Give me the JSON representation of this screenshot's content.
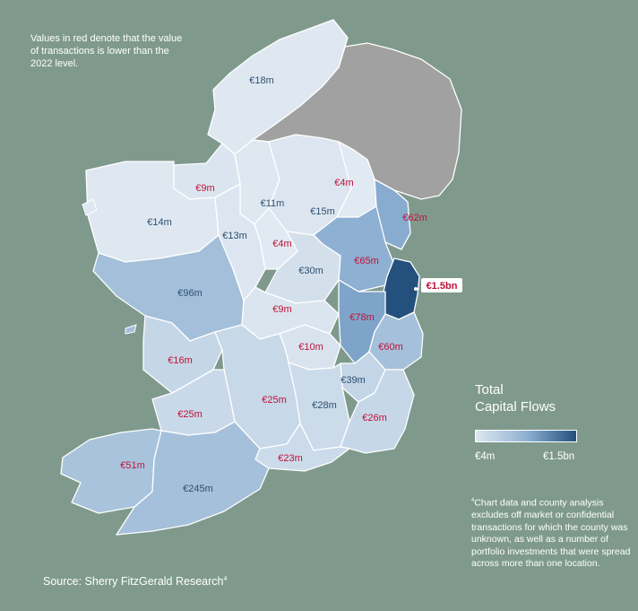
{
  "note": "Values in red denote that the value of transactions is lower than the 2022 level.",
  "source": "Source: Sherry FitzGerald Research",
  "source_sup": "4",
  "legend": {
    "title_line1": "Total",
    "title_line2": "Capital Flows",
    "min_label": "€4m",
    "max_label": "€1.5bn"
  },
  "footnote_sup": "4",
  "footnote": "Chart data and county analysis excludes off market or confidential transactions for which the county was unknown, as well as a number of portfolio investments that were spread across more than one location.",
  "colors": {
    "background": "#7f9a8d",
    "northern_ireland": "#a1a1a1",
    "lowest": "#dde7f1",
    "highest": "#24507d",
    "below_2022": "#c0113a",
    "above_2022": "#2c4f73"
  },
  "counties": {
    "donegal": {
      "value": "€18m",
      "below_2022": false
    },
    "sligo": {
      "value": "€9m",
      "below_2022": true
    },
    "leitrim": {
      "value": "€11m",
      "below_2022": false
    },
    "cavan": {
      "value": "€15m",
      "below_2022": false
    },
    "monaghan": {
      "value": "€4m",
      "below_2022": true
    },
    "louth": {
      "value": "€62m",
      "below_2022": true
    },
    "mayo": {
      "value": "€14m",
      "below_2022": false
    },
    "roscommon": {
      "value": "€13m",
      "below_2022": false
    },
    "longford": {
      "value": "€4m",
      "below_2022": true
    },
    "meath": {
      "value": "€65m",
      "below_2022": true
    },
    "westmeath": {
      "value": "€30m",
      "below_2022": false
    },
    "dublin": {
      "value": "€1.5bn",
      "below_2022": true
    },
    "galway": {
      "value": "€96m",
      "below_2022": false
    },
    "offaly": {
      "value": "€9m",
      "below_2022": true
    },
    "kildare": {
      "value": "€78m",
      "below_2022": true
    },
    "laois": {
      "value": "€10m",
      "below_2022": true
    },
    "wicklow": {
      "value": "€60m",
      "below_2022": true
    },
    "clare": {
      "value": "€16m",
      "below_2022": true
    },
    "carlow": {
      "value": "€39m",
      "below_2022": false
    },
    "tipperary": {
      "value": "€25m",
      "below_2022": true
    },
    "kilkenny": {
      "value": "€28m",
      "below_2022": false
    },
    "limerick": {
      "value": "€25m",
      "below_2022": true
    },
    "wexford": {
      "value": "€26m",
      "below_2022": true
    },
    "kerry": {
      "value": "€51m",
      "below_2022": true
    },
    "waterford": {
      "value": "€23m",
      "below_2022": true
    },
    "cork": {
      "value": "€245m",
      "below_2022": false
    }
  }
}
